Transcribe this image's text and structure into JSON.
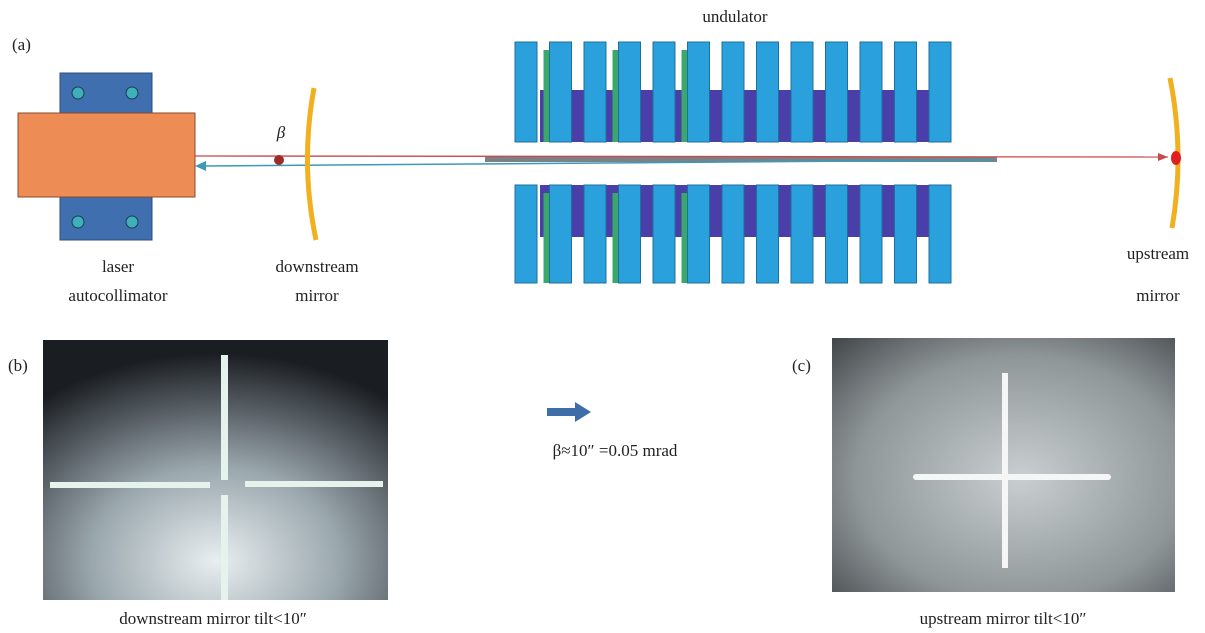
{
  "panel_a": {
    "label": "(a)",
    "undulator": "undulator",
    "angle_symbol": "β",
    "autocollimator": [
      "laser",
      "autocollimator"
    ],
    "downstream_mirror": [
      "downstream",
      "mirror"
    ],
    "upstream_mirror": [
      "upstream",
      "mirror"
    ]
  },
  "panel_b": {
    "label": "(b)",
    "caption": "downstream mirror tilt<10″"
  },
  "panel_c": {
    "label": "(c)",
    "caption": "upstream mirror tilt<10″"
  },
  "result": "β≈10″ =0.05 mrad"
}
